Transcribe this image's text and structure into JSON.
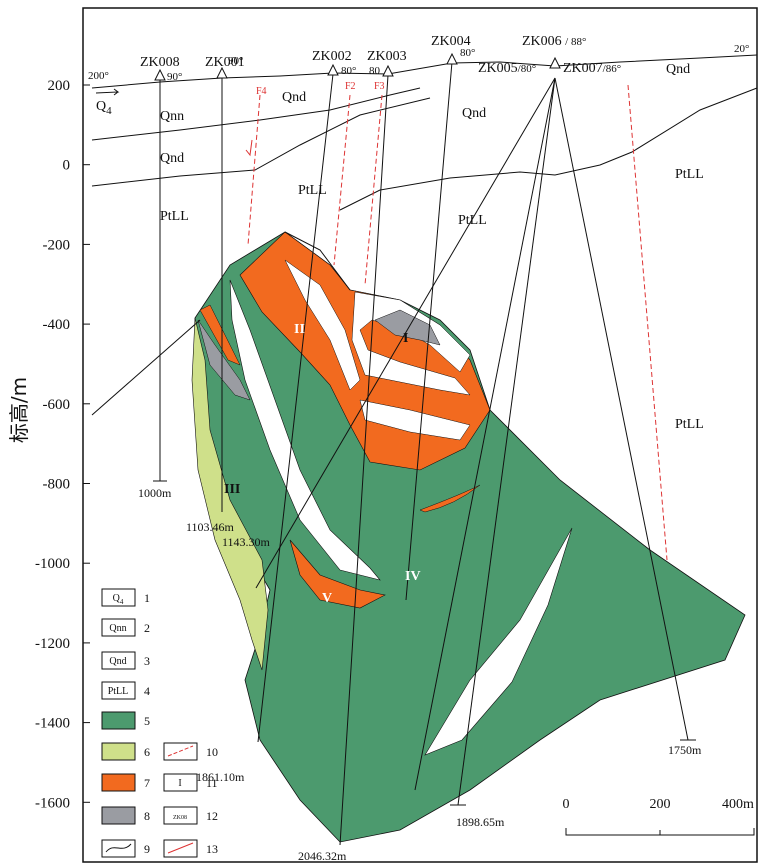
{
  "y_axis": {
    "label": "标高/m",
    "ticks": [
      "200",
      "0",
      "-200",
      "-400",
      "-600",
      "-800",
      "-1000",
      "-1200",
      "-1400",
      "-1600"
    ]
  },
  "drill_holes": [
    {
      "name": "ZK008",
      "angle": "90°"
    },
    {
      "name": "ZK001",
      "angle": "90°"
    },
    {
      "name": "ZK002",
      "angle": "80°"
    },
    {
      "name": "ZK003",
      "angle": "80"
    },
    {
      "name": "ZK004",
      "angle": "80°"
    },
    {
      "name": "ZK006",
      "angle": "/ 88°"
    },
    {
      "name": "ZK005",
      "angle": "/80°"
    },
    {
      "name": "ZK007",
      "angle": "/86°"
    }
  ],
  "depth_labels": [
    "1000m",
    "1103.46m",
    "1143.30m",
    "1861.10m",
    "2046.32m",
    "1898.65m",
    "1750m"
  ],
  "strata_labels": {
    "q4": {
      "symbol": "Q",
      "sub": "4"
    },
    "others": [
      "Qnn",
      "Qnd",
      "Qnd",
      "Qnd",
      "Qnd",
      "PtLL",
      "PtLL",
      "PtLL",
      "PtLL",
      "PtLL"
    ]
  },
  "fault_labels": [
    "F4",
    "F2",
    "F3"
  ],
  "orientations": [
    "200°",
    "20°"
  ],
  "ore_bodies": [
    "I",
    "II",
    "III",
    "IV",
    "V"
  ],
  "legend": [
    {
      "box": "Q",
      "sub": "4",
      "num": "1"
    },
    {
      "box": "Qnn",
      "num": "2"
    },
    {
      "box": "Qnd",
      "num": "3"
    },
    {
      "box": "PtLL",
      "num": "4"
    },
    {
      "num": "5"
    },
    {
      "num": "6"
    },
    {
      "num": "7"
    },
    {
      "num": "8"
    },
    {
      "num": "9"
    },
    {
      "num": "10"
    },
    {
      "box": "I",
      "num": "11"
    },
    {
      "box": "ZK08",
      "num": "12"
    },
    {
      "num": "13"
    }
  ],
  "scale": [
    "0",
    "200",
    "400m"
  ]
}
